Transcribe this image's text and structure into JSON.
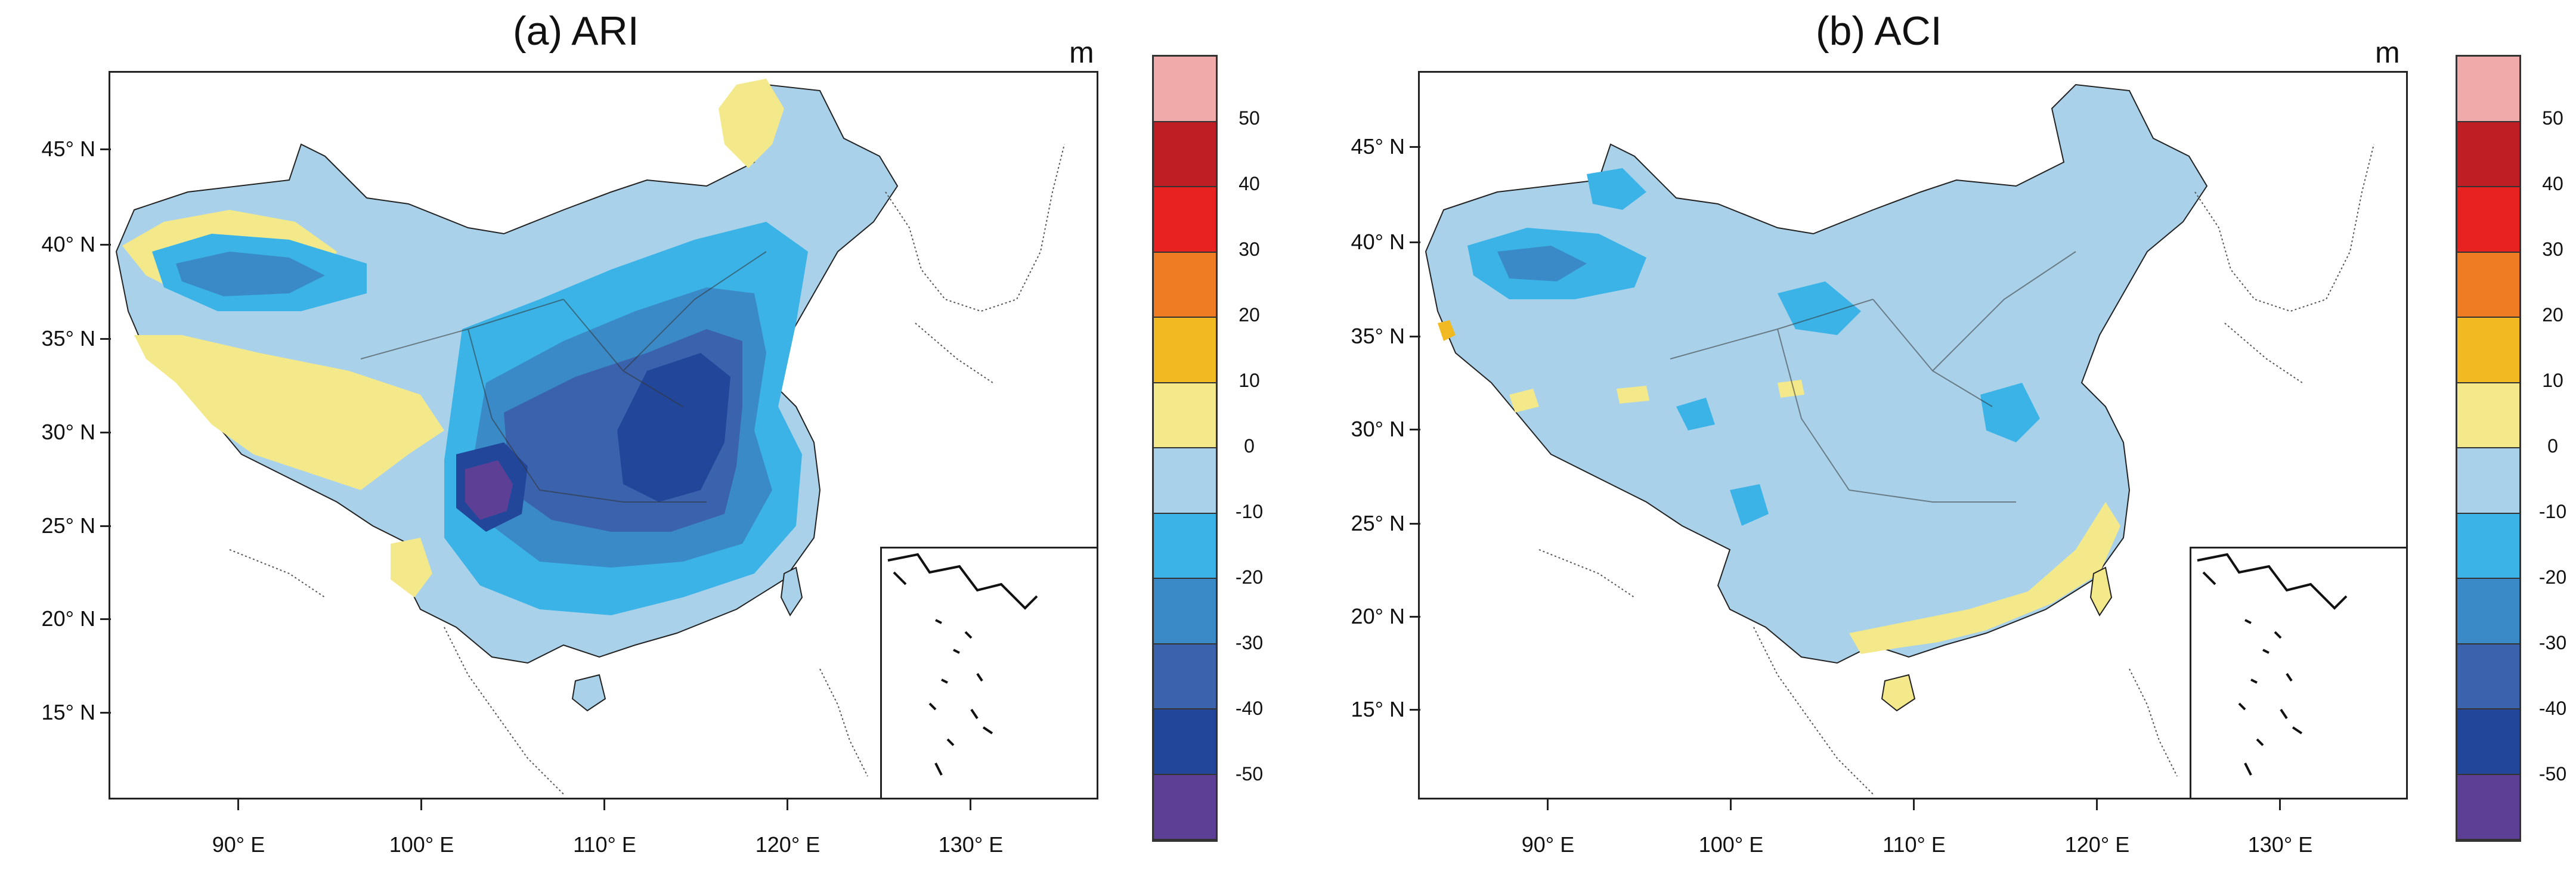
{
  "panels": [
    {
      "id": "a",
      "title": "(a) ARI",
      "unit": "m",
      "lat_labels": [
        "45° N",
        "40° N",
        "35° N",
        "30° N",
        "25° N",
        "20° N",
        "15° N"
      ],
      "lon_labels": [
        "90° E",
        "100° E",
        "110° E",
        "120° E",
        "130° E"
      ],
      "dominant_class": "0 to -10",
      "features": [
        "strong negative center (-50 to below -50) over Sichuan Basin near 106°E 26°N",
        "-30 to -50 over central and eastern China 108-118°E 27-35°N",
        "-10 to -20 over Tarim Basin near 88-95°E 38°N",
        "0 to 10 over Tibetan Plateau, Tarim margins and NE China"
      ]
    },
    {
      "id": "b",
      "title": "(b) ACI",
      "unit": "m",
      "lat_labels": [
        "45° N",
        "40° N",
        "35° N",
        "30° N",
        "25° N",
        "20° N",
        "15° N"
      ],
      "lon_labels": [
        "90° E",
        "100° E",
        "110° E",
        "120° E",
        "130° E"
      ],
      "dominant_class": "0 to -10",
      "features": [
        "-10 to -20 over Tarim Basin and scattered patches in east China",
        "-20 to -30 small core in Tarim Basin",
        "0 to 10 along the south coast, Hainan and Taiwan",
        "10 to 20 near 83°E 35°N"
      ]
    }
  ],
  "colorbar": {
    "ticks": [
      "50",
      "40",
      "30",
      "20",
      "10",
      "0",
      "-10",
      "-20",
      "-30",
      "-40",
      "-50"
    ],
    "colors_top_to_bottom": [
      "#f1aaaa",
      "#be1e24",
      "#e82121",
      "#ef7b23",
      "#f2ba22",
      "#f4e98a",
      "#a9d2ea",
      "#3bb3e6",
      "#3a8ac8",
      "#3a62ad",
      "#22479a",
      "#5e3f96"
    ]
  },
  "colors": {
    "land_default": "#a9d2ea",
    "border": "#333333",
    "coast": "#222222"
  }
}
